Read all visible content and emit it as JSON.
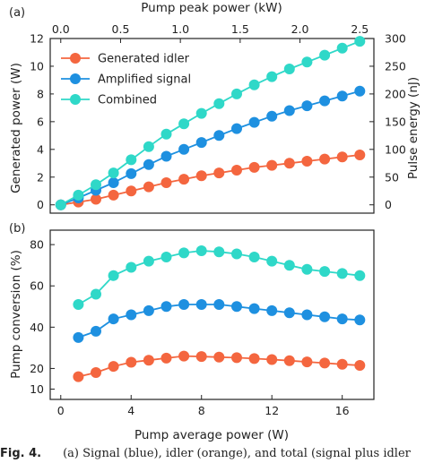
{
  "chart_data": [
    {
      "panel": "(a)",
      "type": "line",
      "xlabel": "Pump average power (W)",
      "x2label": "Pump peak power (kW)",
      "ylabel": "Generated power (W)",
      "y2label": "Pulse energy (nJ)",
      "xlim": [
        -0.6,
        17.8
      ],
      "ylim": [
        -0.6,
        12
      ],
      "x2lim": [
        -0.0882,
        2.618
      ],
      "y2lim": [
        -15,
        300
      ],
      "x2ticks": [
        0.0,
        0.5,
        1.0,
        1.5,
        2.0,
        2.5
      ],
      "x2tick_labels": [
        "0.0",
        "0.5",
        "1.0",
        "1.5",
        "2.0",
        "2.5"
      ],
      "yticks": [
        0,
        2,
        4,
        6,
        8,
        10,
        12
      ],
      "y2ticks": [
        0,
        50,
        100,
        150,
        200,
        250,
        300
      ],
      "x": [
        0,
        1,
        2,
        3,
        4,
        5,
        6,
        7,
        8,
        9,
        10,
        11,
        12,
        13,
        14,
        15,
        16,
        17
      ],
      "series": [
        {
          "name": "Generated idler",
          "color": "#f4663f",
          "values": [
            0,
            0.2,
            0.4,
            0.7,
            1.0,
            1.3,
            1.6,
            1.85,
            2.1,
            2.3,
            2.5,
            2.7,
            2.85,
            3.0,
            3.15,
            3.3,
            3.45,
            3.6
          ]
        },
        {
          "name": "Amplified signal",
          "color": "#1e90e0",
          "values": [
            0,
            0.5,
            1.05,
            1.6,
            2.25,
            2.9,
            3.5,
            4.0,
            4.5,
            5.0,
            5.5,
            5.95,
            6.4,
            6.8,
            7.15,
            7.5,
            7.85,
            8.2
          ]
        },
        {
          "name": "Combined",
          "color": "#2fd8c8",
          "values": [
            0,
            0.7,
            1.45,
            2.3,
            3.25,
            4.2,
            5.1,
            5.85,
            6.6,
            7.3,
            8.0,
            8.65,
            9.25,
            9.8,
            10.3,
            10.8,
            11.3,
            11.8
          ]
        }
      ],
      "legend": "top-left",
      "grid": false
    },
    {
      "panel": "(b)",
      "type": "line",
      "xlabel": "Pump average power (W)",
      "ylabel": "Pump conversion (%)",
      "xlim": [
        -0.6,
        17.8
      ],
      "ylim": [
        5,
        87
      ],
      "xticks": [
        0,
        4,
        8,
        12,
        16
      ],
      "yticks": [
        10,
        20,
        40,
        60,
        80
      ],
      "x": [
        1,
        2,
        3,
        4,
        5,
        6,
        7,
        8,
        9,
        10,
        11,
        12,
        13,
        14,
        15,
        16,
        17
      ],
      "series": [
        {
          "name": "Generated idler",
          "color": "#f4663f",
          "values": [
            16,
            18,
            21,
            23,
            24,
            25,
            26,
            25.8,
            25.5,
            25.2,
            24.8,
            24.3,
            23.8,
            23.2,
            22.6,
            22,
            21.5
          ]
        },
        {
          "name": "Amplified signal",
          "color": "#1e90e0",
          "values": [
            35,
            38,
            44,
            46,
            48,
            50,
            51,
            51,
            51,
            50,
            49,
            48,
            47,
            46,
            45,
            44,
            43.5
          ]
        },
        {
          "name": "Combined",
          "color": "#2fd8c8",
          "values": [
            51,
            56,
            65,
            69,
            72,
            74,
            76,
            77,
            76.5,
            75.5,
            74,
            72,
            70,
            68,
            67,
            66,
            65
          ]
        }
      ],
      "grid": false
    }
  ],
  "caption": {
    "label": "Fig. 4.",
    "text": "(a) Signal (blue), idler (orange), and total (signal plus idler"
  }
}
